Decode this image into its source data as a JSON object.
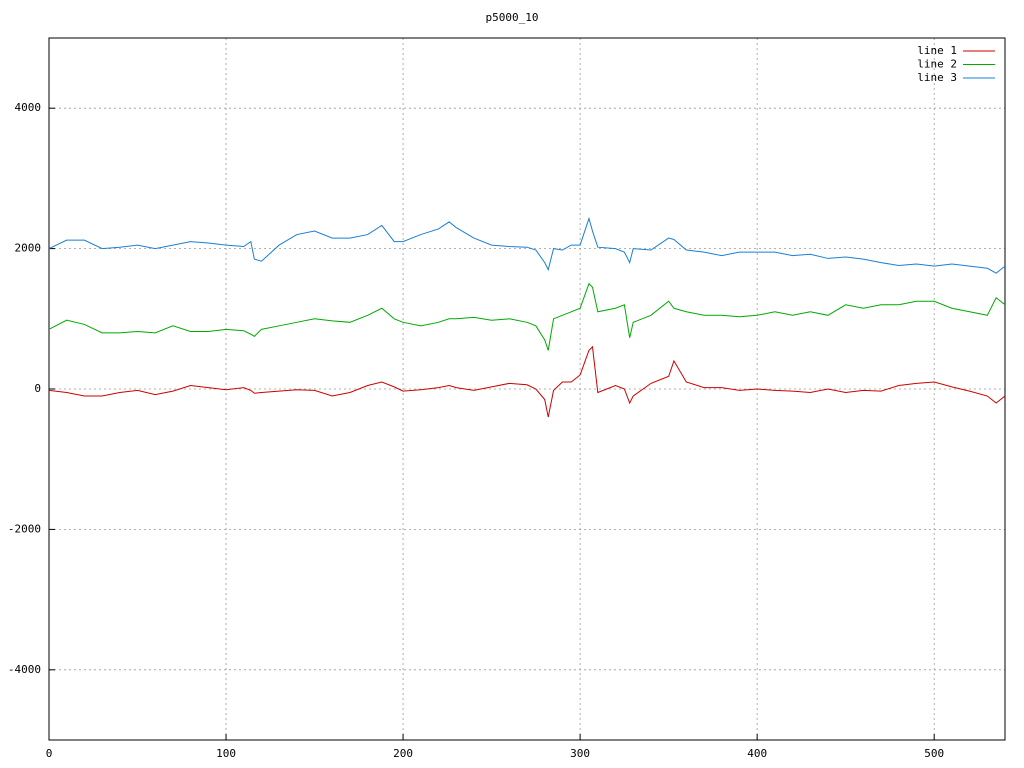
{
  "chart_data": {
    "type": "line",
    "title": "p5000_10",
    "x": [
      0,
      10,
      20,
      30,
      40,
      50,
      60,
      70,
      80,
      90,
      100,
      110,
      114,
      116,
      120,
      130,
      140,
      150,
      160,
      170,
      180,
      188,
      195,
      200,
      210,
      220,
      226,
      230,
      240,
      250,
      260,
      270,
      275,
      280,
      282,
      285,
      290,
      295,
      300,
      305,
      307,
      310,
      320,
      325,
      328,
      330,
      340,
      350,
      353,
      360,
      370,
      380,
      390,
      400,
      410,
      420,
      430,
      440,
      450,
      460,
      470,
      480,
      490,
      500,
      510,
      520,
      530,
      535,
      540
    ],
    "series": [
      {
        "name": "line 1",
        "color": "#cc0000",
        "values": [
          -20,
          -50,
          -100,
          -100,
          -50,
          -20,
          -80,
          -30,
          50,
          20,
          -10,
          20,
          -20,
          -60,
          -50,
          -30,
          -10,
          -20,
          -100,
          -50,
          50,
          100,
          30,
          -30,
          -10,
          20,
          50,
          20,
          -20,
          30,
          80,
          60,
          0,
          -150,
          -400,
          -20,
          100,
          100,
          200,
          550,
          600,
          -50,
          50,
          0,
          -200,
          -100,
          80,
          180,
          400,
          100,
          20,
          20,
          -20,
          0,
          -20,
          -30,
          -50,
          0,
          -50,
          -20,
          -30,
          50,
          80,
          100,
          30,
          -30,
          -100,
          -200,
          -100
        ]
      },
      {
        "name": "line 2",
        "color": "#00aa00",
        "values": [
          850,
          980,
          920,
          800,
          800,
          820,
          800,
          900,
          820,
          820,
          850,
          830,
          780,
          750,
          850,
          900,
          950,
          1000,
          970,
          950,
          1050,
          1150,
          1000,
          950,
          900,
          950,
          1000,
          1000,
          1020,
          980,
          1000,
          950,
          900,
          700,
          550,
          1000,
          1050,
          1100,
          1150,
          1500,
          1450,
          1100,
          1150,
          1200,
          730,
          950,
          1050,
          1250,
          1150,
          1100,
          1050,
          1050,
          1030,
          1050,
          1100,
          1050,
          1100,
          1050,
          1200,
          1150,
          1200,
          1200,
          1250,
          1250,
          1150,
          1100,
          1050,
          1300,
          1200
        ]
      },
      {
        "name": "line 3",
        "color": "#1a7fd4",
        "values": [
          2000,
          2120,
          2120,
          2000,
          2020,
          2050,
          2000,
          2050,
          2100,
          2080,
          2050,
          2030,
          2100,
          1850,
          1820,
          2050,
          2200,
          2250,
          2150,
          2150,
          2200,
          2330,
          2100,
          2100,
          2200,
          2280,
          2380,
          2300,
          2150,
          2050,
          2030,
          2020,
          1980,
          1800,
          1700,
          2000,
          1980,
          2050,
          2050,
          2430,
          2250,
          2020,
          2000,
          1950,
          1800,
          2000,
          1980,
          2150,
          2130,
          1980,
          1950,
          1900,
          1950,
          1950,
          1950,
          1900,
          1920,
          1860,
          1880,
          1850,
          1800,
          1760,
          1780,
          1750,
          1780,
          1750,
          1720,
          1650,
          1750
        ]
      }
    ],
    "xlim": [
      0,
      540
    ],
    "ylim": [
      -5000,
      5000
    ],
    "xticks": [
      0,
      100,
      200,
      300,
      400,
      500
    ],
    "yticks": [
      -4000,
      -2000,
      0,
      2000,
      4000
    ],
    "grid": true,
    "legend": "top-right"
  }
}
